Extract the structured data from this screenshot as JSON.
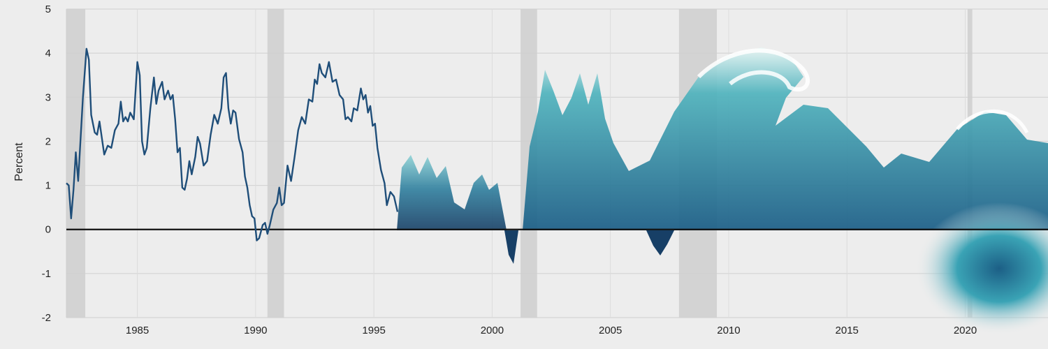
{
  "chart_data": {
    "type": "line",
    "title": "",
    "xlabel": "",
    "ylabel": "Percent",
    "xlim": [
      1982.0,
      2023.5
    ],
    "ylim": [
      -2,
      5
    ],
    "x_ticks": [
      1985,
      1990,
      1995,
      2000,
      2005,
      2010,
      2015,
      2020
    ],
    "x_tick_labels": [
      "1985",
      "1990",
      "1995",
      "2000",
      "2005",
      "2010",
      "2015",
      "2020"
    ],
    "y_ticks": [
      -2,
      -1,
      0,
      1,
      2,
      3,
      4,
      5
    ],
    "y_tick_labels": [
      "-2",
      "-1",
      "0",
      "1",
      "2",
      "3",
      "4",
      "5"
    ],
    "grid": true,
    "zero_line": true,
    "legend": "none",
    "recession_shading": [
      [
        1982.0,
        1982.8
      ],
      [
        1990.5,
        1991.2
      ],
      [
        2001.2,
        2001.9
      ],
      [
        2007.9,
        2009.5
      ],
      [
        2020.1,
        2020.3
      ]
    ],
    "series": [
      {
        "color": "#1f4e79",
        "points": [
          [
            1982.0,
            1.05
          ],
          [
            1982.1,
            1.0
          ],
          [
            1982.2,
            0.25
          ],
          [
            1982.3,
            0.9
          ],
          [
            1982.4,
            1.75
          ],
          [
            1982.5,
            1.1
          ],
          [
            1982.7,
            3.0
          ],
          [
            1982.85,
            4.1
          ],
          [
            1982.95,
            3.85
          ],
          [
            1983.05,
            2.6
          ],
          [
            1983.2,
            2.2
          ],
          [
            1983.3,
            2.15
          ],
          [
            1983.4,
            2.45
          ],
          [
            1983.6,
            1.7
          ],
          [
            1983.75,
            1.9
          ],
          [
            1983.9,
            1.85
          ],
          [
            1984.05,
            2.25
          ],
          [
            1984.2,
            2.4
          ],
          [
            1984.3,
            2.9
          ],
          [
            1984.4,
            2.45
          ],
          [
            1984.5,
            2.55
          ],
          [
            1984.6,
            2.45
          ],
          [
            1984.7,
            2.65
          ],
          [
            1984.85,
            2.5
          ],
          [
            1985.0,
            3.8
          ],
          [
            1985.1,
            3.5
          ],
          [
            1985.2,
            2.0
          ],
          [
            1985.3,
            1.7
          ],
          [
            1985.4,
            1.85
          ],
          [
            1985.55,
            2.75
          ],
          [
            1985.7,
            3.45
          ],
          [
            1985.8,
            2.85
          ],
          [
            1985.9,
            3.15
          ],
          [
            1986.05,
            3.35
          ],
          [
            1986.15,
            2.95
          ],
          [
            1986.3,
            3.15
          ],
          [
            1986.4,
            2.95
          ],
          [
            1986.5,
            3.05
          ],
          [
            1986.6,
            2.5
          ],
          [
            1986.7,
            1.75
          ],
          [
            1986.8,
            1.85
          ],
          [
            1986.9,
            0.95
          ],
          [
            1987.0,
            0.9
          ],
          [
            1987.1,
            1.15
          ],
          [
            1987.2,
            1.55
          ],
          [
            1987.3,
            1.25
          ],
          [
            1987.45,
            1.65
          ],
          [
            1987.55,
            2.1
          ],
          [
            1987.65,
            1.95
          ],
          [
            1987.8,
            1.45
          ],
          [
            1987.95,
            1.55
          ],
          [
            1988.1,
            2.15
          ],
          [
            1988.25,
            2.6
          ],
          [
            1988.4,
            2.4
          ],
          [
            1988.55,
            2.75
          ],
          [
            1988.65,
            3.45
          ],
          [
            1988.75,
            3.55
          ],
          [
            1988.85,
            2.75
          ],
          [
            1988.95,
            2.4
          ],
          [
            1989.05,
            2.7
          ],
          [
            1989.15,
            2.65
          ],
          [
            1989.3,
            2.05
          ],
          [
            1989.45,
            1.75
          ],
          [
            1989.55,
            1.2
          ],
          [
            1989.65,
            0.95
          ],
          [
            1989.75,
            0.55
          ],
          [
            1989.85,
            0.3
          ],
          [
            1989.95,
            0.25
          ],
          [
            1990.05,
            -0.25
          ],
          [
            1990.15,
            -0.2
          ],
          [
            1990.3,
            0.1
          ],
          [
            1990.4,
            0.15
          ],
          [
            1990.5,
            -0.1
          ],
          [
            1990.6,
            0.1
          ],
          [
            1990.75,
            0.45
          ],
          [
            1990.9,
            0.6
          ],
          [
            1991.0,
            0.95
          ],
          [
            1991.1,
            0.55
          ],
          [
            1991.2,
            0.6
          ],
          [
            1991.35,
            1.45
          ],
          [
            1991.5,
            1.1
          ],
          [
            1991.65,
            1.65
          ],
          [
            1991.8,
            2.25
          ],
          [
            1991.95,
            2.55
          ],
          [
            1992.1,
            2.4
          ],
          [
            1992.25,
            2.95
          ],
          [
            1992.4,
            2.9
          ],
          [
            1992.5,
            3.4
          ],
          [
            1992.6,
            3.3
          ],
          [
            1992.7,
            3.75
          ],
          [
            1992.8,
            3.55
          ],
          [
            1992.95,
            3.45
          ],
          [
            1993.1,
            3.8
          ],
          [
            1993.25,
            3.35
          ],
          [
            1993.4,
            3.4
          ],
          [
            1993.55,
            3.05
          ],
          [
            1993.7,
            2.95
          ],
          [
            1993.8,
            2.5
          ],
          [
            1993.9,
            2.55
          ],
          [
            1994.05,
            2.45
          ],
          [
            1994.15,
            2.75
          ],
          [
            1994.3,
            2.7
          ],
          [
            1994.45,
            3.2
          ],
          [
            1994.55,
            2.95
          ],
          [
            1994.65,
            3.05
          ],
          [
            1994.75,
            2.65
          ],
          [
            1994.85,
            2.8
          ],
          [
            1994.95,
            2.35
          ],
          [
            1995.05,
            2.4
          ],
          [
            1995.15,
            1.85
          ],
          [
            1995.3,
            1.35
          ],
          [
            1995.45,
            1.05
          ],
          [
            1995.55,
            0.55
          ],
          [
            1995.7,
            0.85
          ],
          [
            1995.85,
            0.75
          ],
          [
            1996.0,
            0.4
          ]
        ]
      }
    ]
  }
}
